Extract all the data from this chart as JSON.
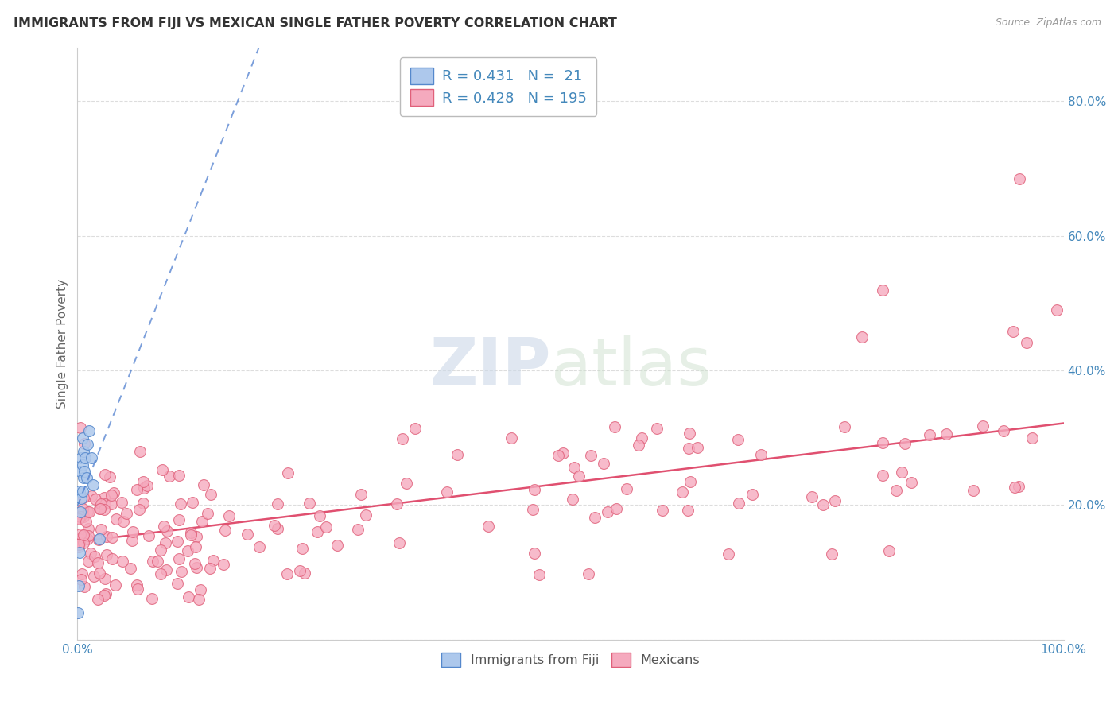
{
  "title": "IMMIGRANTS FROM FIJI VS MEXICAN SINGLE FATHER POVERTY CORRELATION CHART",
  "source": "Source: ZipAtlas.com",
  "ylabel": "Single Father Poverty",
  "xlabel": "",
  "legend_fiji_R": 0.431,
  "legend_fiji_N": 21,
  "legend_mex_R": 0.428,
  "legend_mex_N": 195,
  "fiji_color": "#adc8ec",
  "fiji_edge_color": "#5588cc",
  "mex_color": "#f5aabe",
  "mex_edge_color": "#e0607a",
  "fiji_trend_color": "#4477cc",
  "mex_trend_color": "#e05070",
  "background_color": "#ffffff",
  "grid_color": "#dddddd",
  "title_color": "#333333",
  "axis_color": "#4488bb",
  "source_color": "#999999",
  "ylabel_color": "#666666",
  "watermark_zip_color": "#c5d8ee",
  "watermark_atlas_color": "#c5d8cc",
  "xlim": [
    0.0,
    1.0
  ],
  "ylim": [
    0.0,
    0.88
  ],
  "ytick_vals": [
    0.0,
    0.2,
    0.4,
    0.6,
    0.8
  ],
  "ytick_labels": [
    "",
    "20.0%",
    "40.0%",
    "60.0%",
    "80.0%"
  ],
  "xtick_vals": [
    0.0,
    0.25,
    0.5,
    0.75,
    1.0
  ],
  "xtick_labels": [
    "0.0%",
    "",
    "",
    "",
    "100.0%"
  ],
  "marker_size": 100,
  "marker_lw": 0.8
}
